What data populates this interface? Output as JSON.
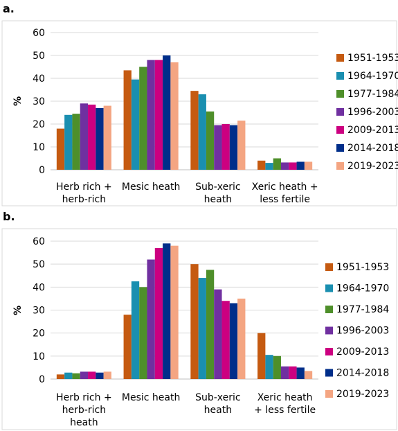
{
  "chart_data": [
    {
      "type": "bar",
      "panel_label": "a.",
      "ylabel": "%",
      "ylim": [
        0,
        60
      ],
      "yticks": [
        0,
        10,
        20,
        30,
        40,
        50,
        60
      ],
      "grid": "horizontal",
      "legend_position": "right",
      "categories": [
        [
          "Herb rich +",
          "herb-rich"
        ],
        [
          "Mesic heath"
        ],
        [
          "Sub-xeric",
          "heath"
        ],
        [
          "Xeric heath +",
          "less fertile"
        ]
      ],
      "series": [
        {
          "name": "1951-1953",
          "color": "#c55a11",
          "values": [
            18,
            43.5,
            34.5,
            4
          ]
        },
        {
          "name": "1964-1970",
          "color": "#1a8fb0",
          "values": [
            24,
            39.5,
            33,
            3
          ]
        },
        {
          "name": "1977-1984",
          "color": "#4e8f2a",
          "values": [
            24.5,
            45,
            25.5,
            5
          ]
        },
        {
          "name": "1996-2003",
          "color": "#7030a0",
          "values": [
            29,
            48,
            19.5,
            3.2
          ]
        },
        {
          "name": "2009-2013",
          "color": "#cc0080",
          "values": [
            28.5,
            48,
            20,
            3.2
          ]
        },
        {
          "name": "2014-2018",
          "color": "#002e8a",
          "values": [
            27,
            50,
            19.5,
            3.5
          ]
        },
        {
          "name": "2019-2023",
          "color": "#f4a582",
          "values": [
            28,
            47,
            21.5,
            3.5
          ]
        }
      ]
    },
    {
      "type": "bar",
      "panel_label": "b.",
      "ylabel": "%",
      "ylim": [
        0,
        60
      ],
      "yticks": [
        0,
        10,
        20,
        30,
        40,
        50,
        60
      ],
      "grid": "horizontal",
      "legend_position": "right",
      "categories": [
        [
          "Herb rich +",
          "herb-rich",
          "heath"
        ],
        [
          "Mesic heath"
        ],
        [
          "Sub-xeric",
          "heath"
        ],
        [
          "Xeric heath",
          "+ less fertile"
        ]
      ],
      "series": [
        {
          "name": "1951-1953",
          "color": "#c55a11",
          "values": [
            2,
            28,
            50,
            20
          ]
        },
        {
          "name": "1964-1970",
          "color": "#1a8fb0",
          "values": [
            2.8,
            42.5,
            44,
            10.5
          ]
        },
        {
          "name": "1977-1984",
          "color": "#4e8f2a",
          "values": [
            2.5,
            40,
            47.5,
            10
          ]
        },
        {
          "name": "1996-2003",
          "color": "#7030a0",
          "values": [
            3.2,
            52,
            39,
            5.5
          ]
        },
        {
          "name": "2009-2013",
          "color": "#cc0080",
          "values": [
            3.2,
            57,
            34,
            5.5
          ]
        },
        {
          "name": "2014-2018",
          "color": "#002e8a",
          "values": [
            2.8,
            59,
            33,
            5
          ]
        },
        {
          "name": "2019-2023",
          "color": "#f4a582",
          "values": [
            3.2,
            58,
            35,
            3.5
          ]
        }
      ]
    }
  ]
}
